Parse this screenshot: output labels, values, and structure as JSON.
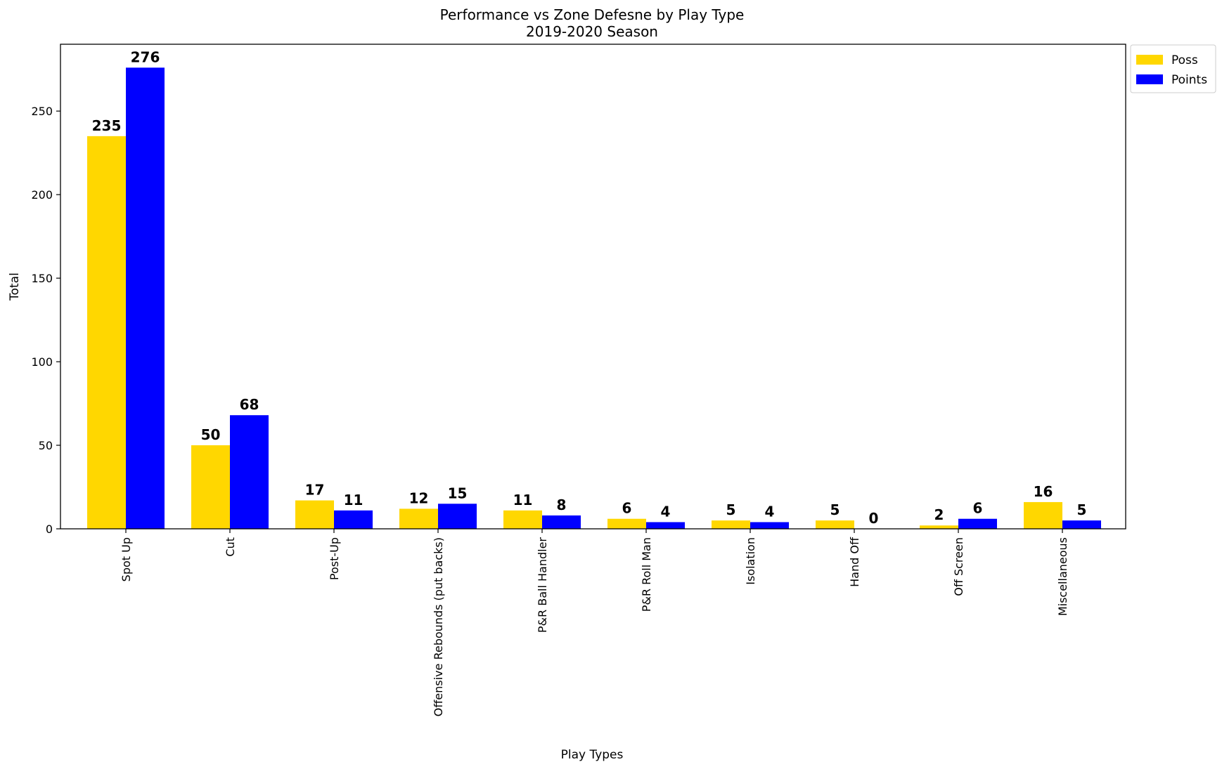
{
  "chart_data": {
    "type": "bar",
    "title": "Performance vs Zone Defesne by Play Type",
    "subtitle": "2019-2020 Season",
    "xlabel": "Play Types",
    "ylabel": "Total",
    "ylim": [
      0,
      290
    ],
    "yticks": [
      0,
      50,
      100,
      150,
      200,
      250
    ],
    "categories": [
      "Spot Up",
      "Cut",
      "Post-Up",
      "Offensive Rebounds (put backs)",
      "P&R Ball Handler",
      "P&R Roll Man",
      "Isolation",
      "Hand Off",
      "Off Screen",
      "Miscellaneous"
    ],
    "series": [
      {
        "name": "Poss",
        "color": "#FFD700",
        "values": [
          235,
          50,
          17,
          12,
          11,
          6,
          5,
          5,
          2,
          16
        ]
      },
      {
        "name": "Points",
        "color": "#0000FF",
        "values": [
          276,
          68,
          11,
          15,
          8,
          4,
          4,
          0,
          6,
          5
        ]
      }
    ],
    "grid": false,
    "legend_position": "upper right, outside plot"
  }
}
